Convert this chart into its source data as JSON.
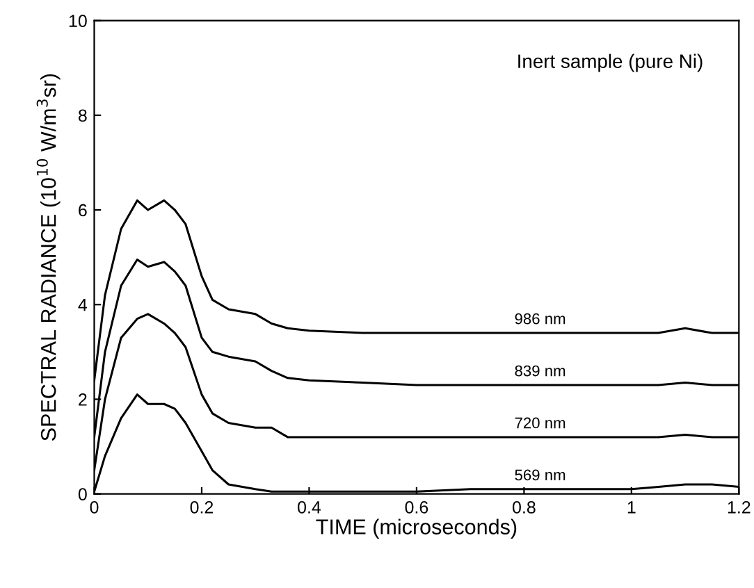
{
  "chart_data": {
    "type": "line",
    "xlabel": "TIME (microseconds)",
    "ylabel": "SPECTRAL RADIANCE (10$^{10}$ W/m$^{3}$sr)",
    "annotations": [
      "Inert sample (pure Ni)"
    ],
    "xlim": [
      0,
      1.2
    ],
    "ylim": [
      0,
      10
    ],
    "xticks": [
      0,
      0.2,
      0.4,
      0.6,
      0.8,
      1,
      1.2
    ],
    "yticks": [
      0,
      2,
      4,
      6,
      8,
      10
    ],
    "grid": false,
    "legend": false,
    "marker": "none",
    "line_style": "solid",
    "x": [
      0,
      0.02,
      0.05,
      0.08,
      0.1,
      0.13,
      0.15,
      0.17,
      0.2,
      0.22,
      0.25,
      0.3,
      0.33,
      0.36,
      0.4,
      0.5,
      0.6,
      0.7,
      0.8,
      0.9,
      1.0,
      1.05,
      1.1,
      1.15,
      1.2
    ],
    "series": [
      {
        "name": "986 nm",
        "color": "#000000",
        "values": [
          2.4,
          4.2,
          5.6,
          6.2,
          6.0,
          6.2,
          6.0,
          5.7,
          4.6,
          4.1,
          3.9,
          3.8,
          3.6,
          3.5,
          3.45,
          3.4,
          3.4,
          3.4,
          3.4,
          3.4,
          3.4,
          3.4,
          3.5,
          3.4,
          3.4
        ]
      },
      {
        "name": "839 nm",
        "color": "#000000",
        "values": [
          1.2,
          3.0,
          4.4,
          4.95,
          4.8,
          4.9,
          4.7,
          4.4,
          3.3,
          3.0,
          2.9,
          2.8,
          2.6,
          2.45,
          2.4,
          2.35,
          2.3,
          2.3,
          2.3,
          2.3,
          2.3,
          2.3,
          2.35,
          2.3,
          2.3
        ]
      },
      {
        "name": "720 nm",
        "color": "#000000",
        "values": [
          0.5,
          2.0,
          3.3,
          3.7,
          3.8,
          3.6,
          3.4,
          3.1,
          2.1,
          1.7,
          1.5,
          1.4,
          1.4,
          1.2,
          1.2,
          1.2,
          1.2,
          1.2,
          1.2,
          1.2,
          1.2,
          1.2,
          1.25,
          1.2,
          1.2
        ]
      },
      {
        "name": "569 nm",
        "color": "#000000",
        "values": [
          0.05,
          0.8,
          1.6,
          2.1,
          1.9,
          1.9,
          1.8,
          1.5,
          0.9,
          0.5,
          0.2,
          0.1,
          0.05,
          0.05,
          0.05,
          0.05,
          0.05,
          0.1,
          0.1,
          0.1,
          0.1,
          0.15,
          0.2,
          0.2,
          0.15
        ]
      }
    ]
  }
}
